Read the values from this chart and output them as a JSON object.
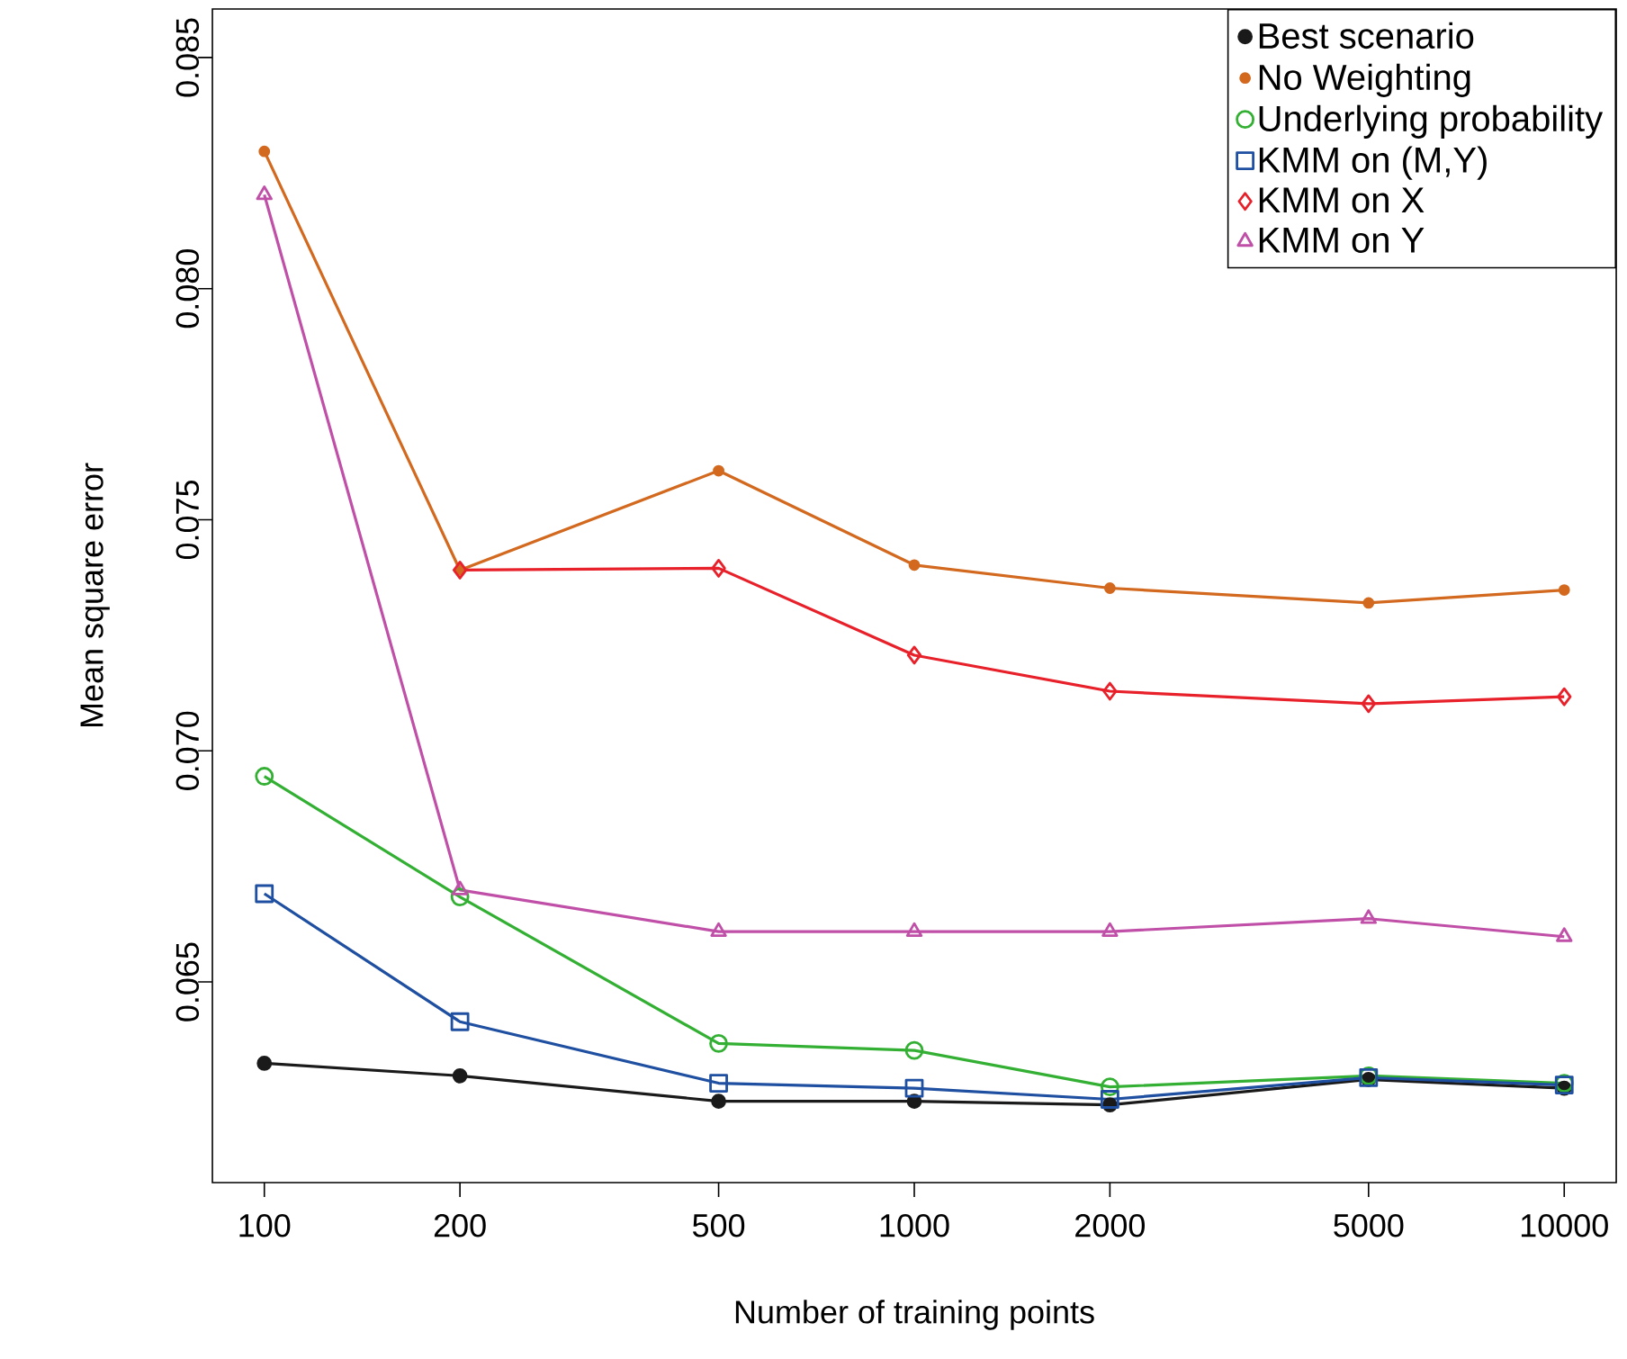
{
  "chart_data": {
    "type": "line",
    "xlabel": "Number of training points",
    "ylabel": "Mean square error",
    "log": "x",
    "x": [
      100,
      200,
      500,
      1000,
      2000,
      5000,
      10000
    ],
    "xlim": [
      83.2,
      12023
    ],
    "ylim": [
      0.06066,
      0.08605
    ],
    "xticks": [
      100,
      200,
      500,
      1000,
      2000,
      5000,
      10000
    ],
    "yticks": [
      0.065,
      {
        "value": 0.07,
        "label": "0.070"
      },
      0.075,
      {
        "value": 0.08,
        "label": "0.080"
      },
      0.085
    ],
    "legend": "top right",
    "grid": false,
    "line_style": "solid",
    "series": [
      {
        "name": "Best scenario",
        "color": "#1a1a1a",
        "marker": "circle",
        "values": [
          0.06324,
          0.06297,
          0.06242,
          0.06242,
          0.06234,
          0.06289,
          0.0627
        ]
      },
      {
        "name": "No Weighting",
        "color": "#d2691e",
        "marker": "circle",
        "values": [
          0.08297,
          0.07391,
          0.07606,
          0.07402,
          0.07352,
          0.0732,
          0.07348
        ]
      },
      {
        "name": "Underlying probability",
        "color": "#33b033",
        "marker": "circle",
        "values": [
          0.06945,
          0.06684,
          0.06367,
          0.06352,
          0.06273,
          0.06297,
          0.06281
        ]
      },
      {
        "name": "KMM on (M,Y)",
        "color": "#1f4fa0",
        "marker": "square",
        "values": [
          0.06691,
          0.06414,
          0.06281,
          0.0627,
          0.06246,
          0.06293,
          0.06277
        ]
      },
      {
        "name": "KMM on X",
        "color": "#e8202a",
        "marker": "diamond",
        "values": [
          null,
          0.07391,
          0.07395,
          0.07207,
          0.07129,
          0.07102,
          0.07117
        ]
      },
      {
        "name": "KMM on Y",
        "color": "#c04fa8",
        "marker": "triangle",
        "values": [
          0.08203,
          0.06699,
          0.06609,
          0.06609,
          0.06609,
          0.06637,
          0.06598
        ]
      }
    ]
  }
}
